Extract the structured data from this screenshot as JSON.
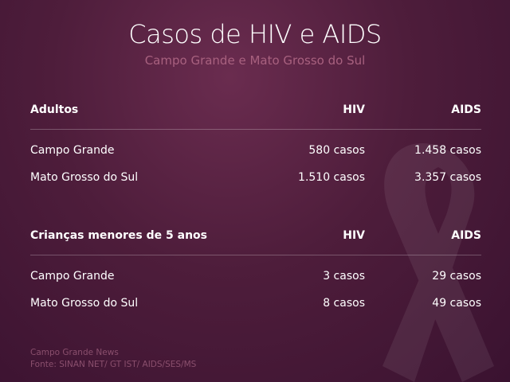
{
  "header": {
    "title": "Casos de HIV e AIDS",
    "subtitle": "Campo Grande e Mato Grosso do Sul"
  },
  "tables": [
    {
      "headers": [
        "Adultos",
        "HIV",
        "AIDS"
      ],
      "rows": [
        [
          "Campo Grande",
          "580 casos",
          "1.458 casos"
        ],
        [
          "Mato Grosso do Sul",
          "1.510 casos",
          "3.357 casos"
        ]
      ]
    },
    {
      "headers": [
        "Crianças menores de 5 anos",
        "HIV",
        "AIDS"
      ],
      "rows": [
        [
          "Campo Grande",
          "3 casos",
          "29 casos"
        ],
        [
          "Mato Grosso do Sul",
          "8 casos",
          "49 casos"
        ]
      ]
    }
  ],
  "footer": {
    "source_name": "Campo Grande News",
    "source_detail": "Fonte: SINAN NET/ GT IST/ AIDS/SES/MS"
  },
  "colors": {
    "background": "#4e1d3b",
    "subtitle": "#a8617f",
    "footer": "#8a4f6d"
  },
  "icons": {
    "background_decoration": "awareness-ribbon-icon"
  }
}
